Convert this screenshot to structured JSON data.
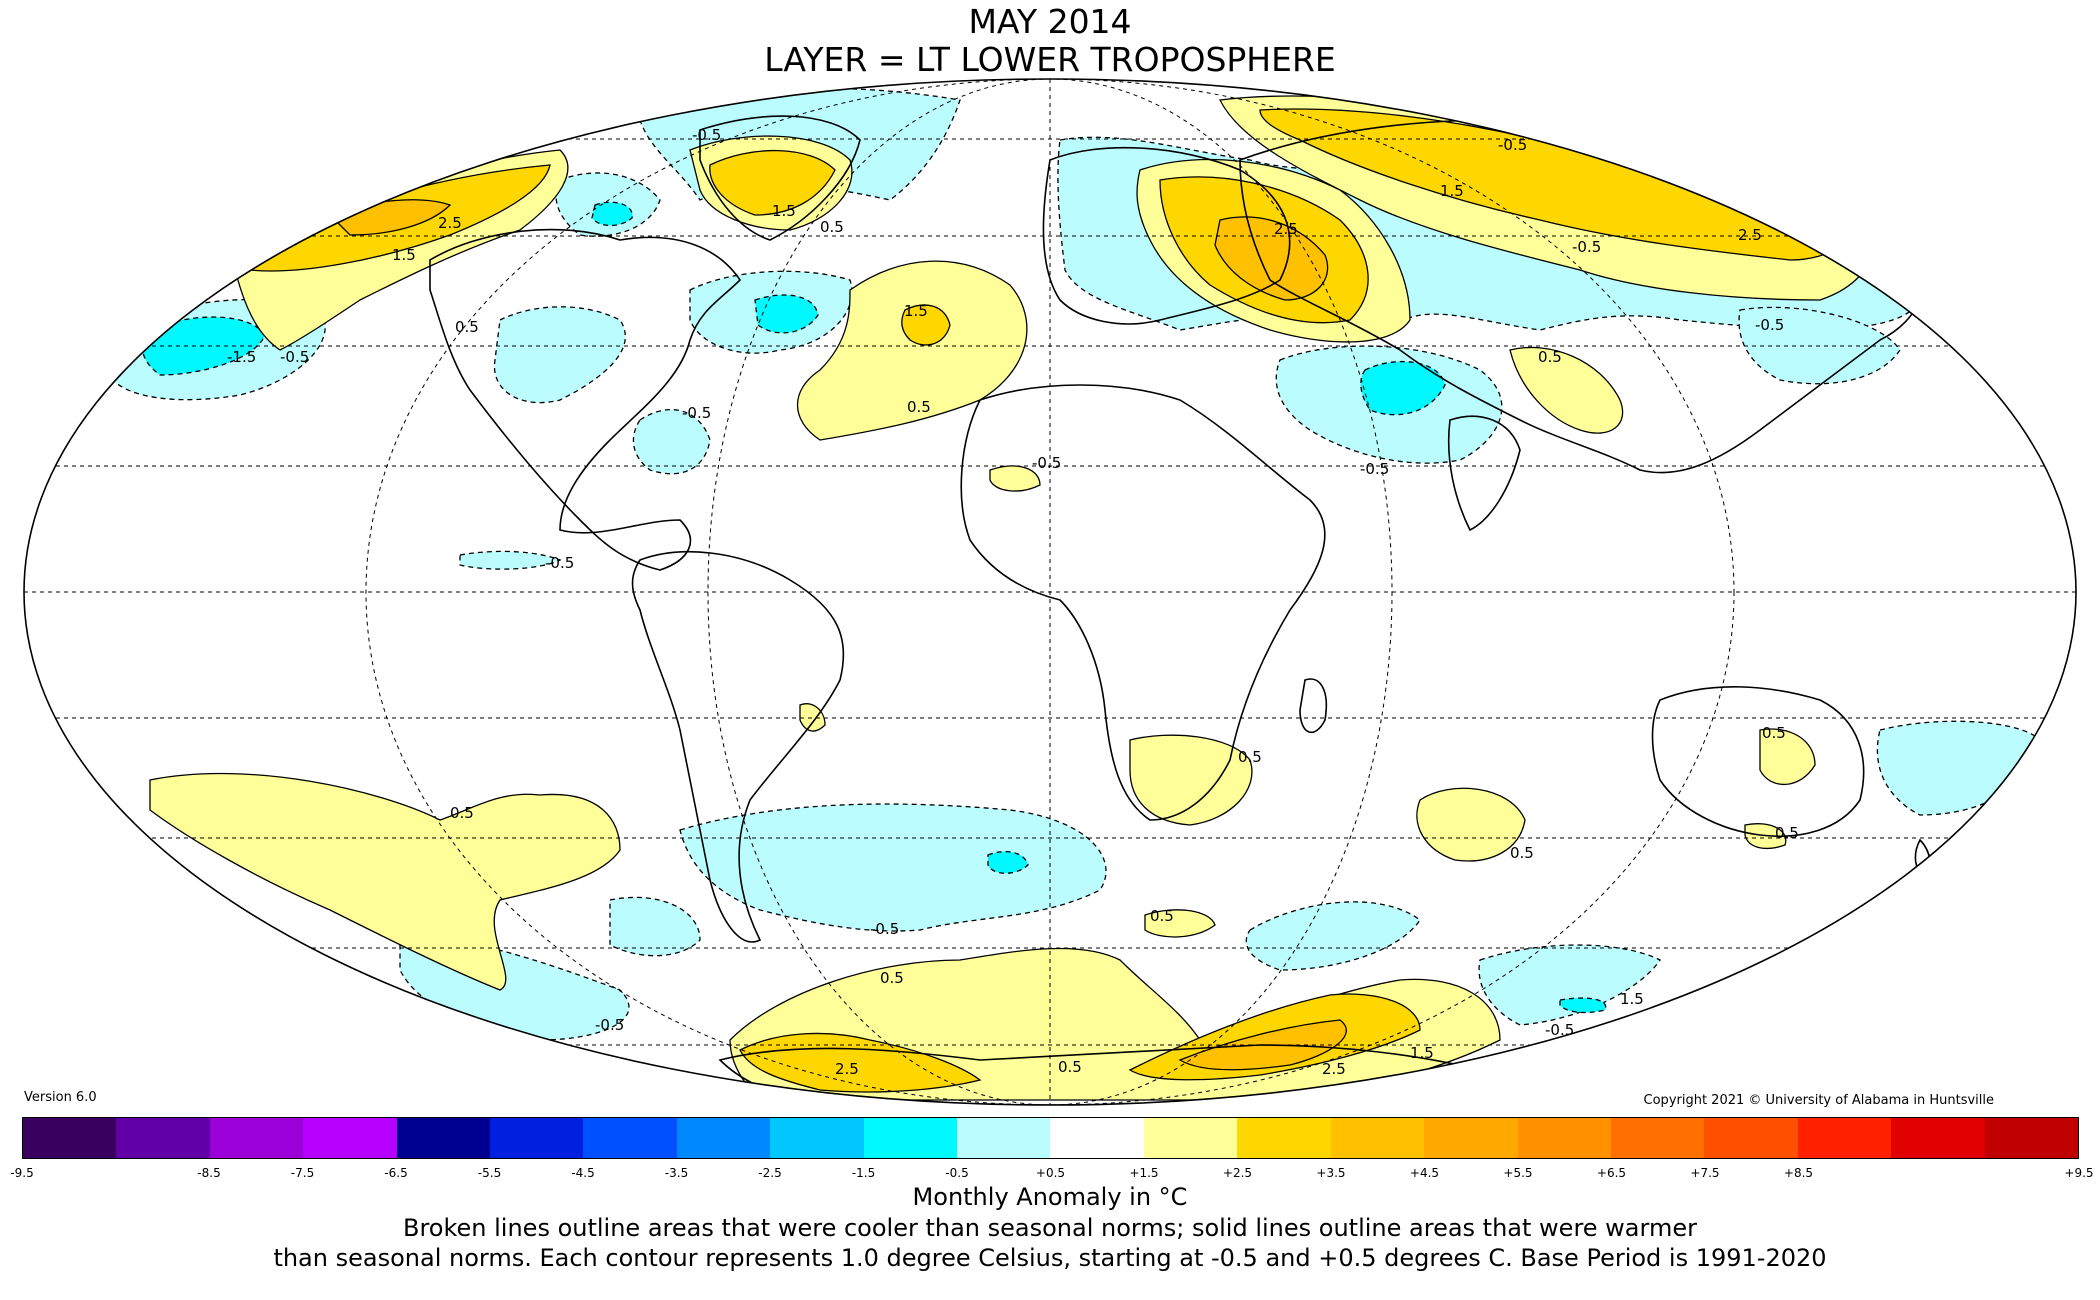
{
  "title": "MAY 2014",
  "subtitle": "LAYER = LT LOWER TROPOSPHERE",
  "version": "Version 6.0",
  "copyright": "Copyright 2021 © University of Alabama in Huntsville",
  "colorbar": {
    "colors": [
      "#3a0060",
      "#6200a8",
      "#9b00d8",
      "#b800ff",
      "#000090",
      "#0020e0",
      "#0050ff",
      "#0088ff",
      "#00c8ff",
      "#00f8ff",
      "#bbfdfe",
      "#ffffff",
      "#ffff99",
      "#ffd700",
      "#ffc000",
      "#ffa800",
      "#ff9000",
      "#ff7000",
      "#ff5000",
      "#ff2000",
      "#e00000",
      "#c00000"
    ],
    "ticks": [
      "-9.5",
      "-8.5",
      "-7.5",
      "-6.5",
      "-5.5",
      "-4.5",
      "-3.5",
      "-2.5",
      "-1.5",
      "-0.5",
      "+0.5",
      "+1.5",
      "+2.5",
      "+3.5",
      "+4.5",
      "+5.5",
      "+6.5",
      "+7.5",
      "+8.5",
      "+9.5"
    ]
  },
  "footer": {
    "units": "Monthly Anomaly in °C",
    "line1": "Broken lines outline areas that were cooler than seasonal norms; solid lines outline areas that were warmer",
    "line2": "than seasonal norms. Each contour represents 1.0 degree Celsius, starting at -0.5 and +0.5 degrees C. Base Period is 1991-2020"
  },
  "contour_labels": {
    "neg": "-0.5",
    "pos": "0.5",
    "neg15": "-1.5",
    "pos15": "1.5",
    "pos25": "2.5"
  },
  "anomalies": [
    {
      "region": "Alaska / NW Canada",
      "kind": "warm",
      "peak": "2.5"
    },
    {
      "region": "Greenland",
      "kind": "warm",
      "peak": "1.5"
    },
    {
      "region": "Western Russia",
      "kind": "warm",
      "peak": "2.5"
    },
    {
      "region": "Northern Siberia",
      "kind": "warm",
      "peak": "2.5"
    },
    {
      "region": "North Atlantic",
      "kind": "warm",
      "peak": "1.5"
    },
    {
      "region": "North Pacific",
      "kind": "cool",
      "peak": "-1.5"
    },
    {
      "region": "Middle East",
      "kind": "cool",
      "peak": "-1.5"
    },
    {
      "region": "Antarctica",
      "kind": "warm",
      "peak": "2.5"
    }
  ]
}
